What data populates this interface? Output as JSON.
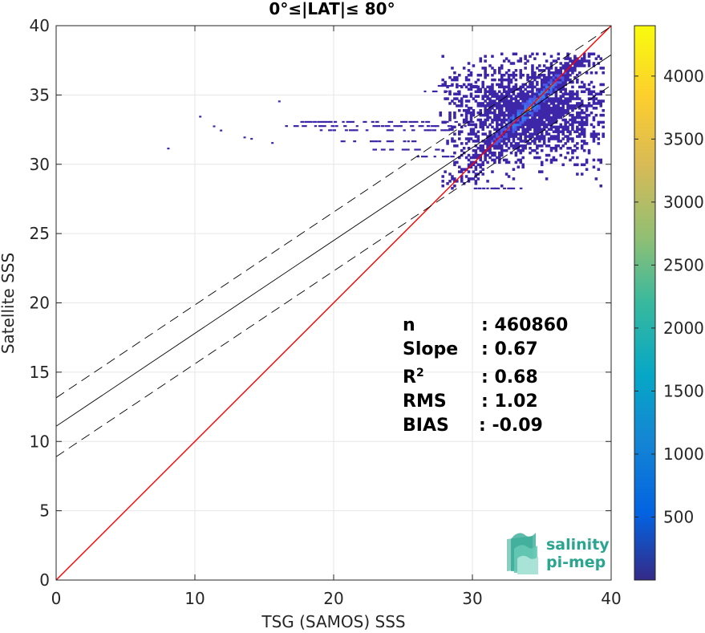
{
  "chart_data": {
    "type": "heatmap",
    "title": "0°≤|LAT|≤ 80°",
    "xlabel": "TSG (SAMOS) SSS",
    "ylabel": "Satellite SSS",
    "xlim": [
      0,
      40
    ],
    "ylim": [
      0,
      40
    ],
    "xticks": [
      "0",
      "10",
      "20",
      "30",
      "40"
    ],
    "yticks": [
      "0",
      "5",
      "10",
      "15",
      "20",
      "25",
      "30",
      "35",
      "40"
    ],
    "grid": true,
    "colorbar": {
      "range": [
        0,
        4400
      ],
      "ticks": [
        "500",
        "1000",
        "1500",
        "2000",
        "2500",
        "3000",
        "3500",
        "4000"
      ],
      "tick_values": [
        500,
        1000,
        1500,
        2000,
        2500,
        3000,
        3500,
        4000
      ],
      "colormap": "parula"
    },
    "lines": [
      {
        "kind": "identity",
        "color": "#ff0000",
        "slope": 1,
        "intercept": 0
      },
      {
        "kind": "regression",
        "color": "#000000",
        "slope": 0.67,
        "intercept": 11.1
      },
      {
        "kind": "regression+rms",
        "color": "#000000",
        "dash": true,
        "slope": 0.67,
        "intercept": 13.15
      },
      {
        "kind": "regression-rms",
        "color": "#000000",
        "dash": true,
        "slope": 0.67,
        "intercept": 8.9
      }
    ],
    "density_core": {
      "x_range": [
        28,
        39.5
      ],
      "y_range": [
        28.2,
        37.8
      ],
      "peak": [
        34,
        34
      ],
      "peak_value": 4400
    },
    "stats": [
      {
        "label": "n",
        "value": ": 460860"
      },
      {
        "label": "Slope",
        "value": ": 0.67"
      },
      {
        "label": "R",
        "sup": "2",
        "value": ": 0.68"
      },
      {
        "label": "RMS",
        "value": ": 1.02"
      },
      {
        "label": "BIAS",
        "value": ": -0.09"
      }
    ]
  },
  "logo": {
    "line1": "salinity",
    "line2": "pi-mep",
    "color": "#2aa58f"
  }
}
